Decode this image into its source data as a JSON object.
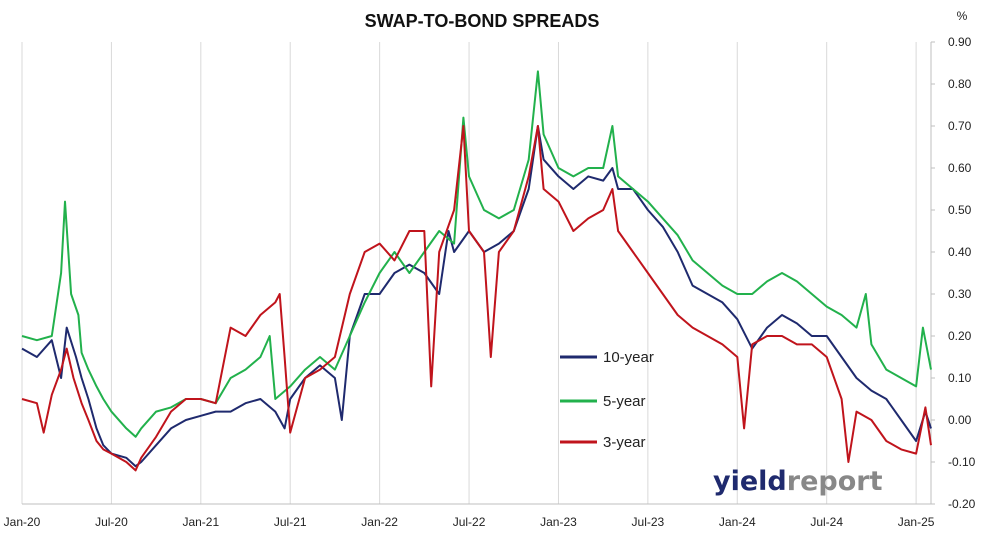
{
  "chart_data": {
    "type": "line",
    "title": "SWAP-TO-BOND SPREADS",
    "ylabel": "%",
    "ylim": [
      -0.2,
      0.9
    ],
    "yticks": [
      "0.90",
      "0.80",
      "0.70",
      "0.60",
      "0.50",
      "0.40",
      "0.30",
      "0.20",
      "0.10",
      "0.00",
      "-0.10",
      "-0.20"
    ],
    "xlim": [
      "2020-01",
      "2025-02"
    ],
    "xticks": [
      "Jan-20",
      "Jul-20",
      "Jan-21",
      "Jul-21",
      "Jan-22",
      "Jul-22",
      "Jan-23",
      "Jul-23",
      "Jan-24",
      "Jul-24",
      "Jan-25"
    ],
    "grid": "vertical",
    "legend_position": "lower-middle-right",
    "series": [
      {
        "name": "10-year",
        "color": "#1f2a6e",
        "points": [
          [
            "2020-01-01",
            0.17
          ],
          [
            "2020-02-01",
            0.15
          ],
          [
            "2020-03-01",
            0.19
          ],
          [
            "2020-03-20",
            0.1
          ],
          [
            "2020-04-01",
            0.22
          ],
          [
            "2020-04-20",
            0.15
          ],
          [
            "2020-05-01",
            0.1
          ],
          [
            "2020-05-15",
            0.05
          ],
          [
            "2020-06-01",
            -0.02
          ],
          [
            "2020-06-15",
            -0.06
          ],
          [
            "2020-07-01",
            -0.08
          ],
          [
            "2020-08-01",
            -0.09
          ],
          [
            "2020-08-20",
            -0.11
          ],
          [
            "2020-09-01",
            -0.1
          ],
          [
            "2020-10-01",
            -0.06
          ],
          [
            "2020-11-01",
            -0.02
          ],
          [
            "2020-12-01",
            0.0
          ],
          [
            "2021-01-01",
            0.01
          ],
          [
            "2021-02-01",
            0.02
          ],
          [
            "2021-03-01",
            0.02
          ],
          [
            "2021-04-01",
            0.04
          ],
          [
            "2021-05-01",
            0.05
          ],
          [
            "2021-06-01",
            0.02
          ],
          [
            "2021-06-20",
            -0.02
          ],
          [
            "2021-07-01",
            0.05
          ],
          [
            "2021-08-01",
            0.1
          ],
          [
            "2021-09-01",
            0.13
          ],
          [
            "2021-10-01",
            0.1
          ],
          [
            "2021-10-15",
            0.0
          ],
          [
            "2021-11-01",
            0.2
          ],
          [
            "2021-12-01",
            0.3
          ],
          [
            "2022-01-01",
            0.3
          ],
          [
            "2022-02-01",
            0.35
          ],
          [
            "2022-03-01",
            0.37
          ],
          [
            "2022-04-01",
            0.35
          ],
          [
            "2022-05-01",
            0.3
          ],
          [
            "2022-05-20",
            0.45
          ],
          [
            "2022-06-01",
            0.4
          ],
          [
            "2022-07-01",
            0.45
          ],
          [
            "2022-08-01",
            0.4
          ],
          [
            "2022-09-01",
            0.42
          ],
          [
            "2022-10-01",
            0.45
          ],
          [
            "2022-11-01",
            0.55
          ],
          [
            "2022-11-20",
            0.7
          ],
          [
            "2022-12-01",
            0.62
          ],
          [
            "2023-01-01",
            0.58
          ],
          [
            "2023-02-01",
            0.55
          ],
          [
            "2023-03-01",
            0.58
          ],
          [
            "2023-04-01",
            0.57
          ],
          [
            "2023-04-20",
            0.6
          ],
          [
            "2023-05-01",
            0.55
          ],
          [
            "2023-06-01",
            0.55
          ],
          [
            "2023-07-01",
            0.5
          ],
          [
            "2023-08-01",
            0.46
          ],
          [
            "2023-09-01",
            0.4
          ],
          [
            "2023-10-01",
            0.32
          ],
          [
            "2023-11-01",
            0.3
          ],
          [
            "2023-12-01",
            0.28
          ],
          [
            "2024-01-01",
            0.24
          ],
          [
            "2024-02-01",
            0.17
          ],
          [
            "2024-03-01",
            0.22
          ],
          [
            "2024-04-01",
            0.25
          ],
          [
            "2024-05-01",
            0.23
          ],
          [
            "2024-06-01",
            0.2
          ],
          [
            "2024-07-01",
            0.2
          ],
          [
            "2024-08-01",
            0.15
          ],
          [
            "2024-09-01",
            0.1
          ],
          [
            "2024-10-01",
            0.07
          ],
          [
            "2024-11-01",
            0.05
          ],
          [
            "2024-12-01",
            0.0
          ],
          [
            "2025-01-01",
            -0.05
          ],
          [
            "2025-01-20",
            0.02
          ],
          [
            "2025-02-01",
            -0.02
          ]
        ]
      },
      {
        "name": "5-year",
        "color": "#22b14c",
        "points": [
          [
            "2020-01-01",
            0.2
          ],
          [
            "2020-02-01",
            0.19
          ],
          [
            "2020-03-01",
            0.2
          ],
          [
            "2020-03-20",
            0.35
          ],
          [
            "2020-03-28",
            0.52
          ],
          [
            "2020-04-10",
            0.3
          ],
          [
            "2020-04-25",
            0.25
          ],
          [
            "2020-05-01",
            0.16
          ],
          [
            "2020-05-15",
            0.12
          ],
          [
            "2020-06-01",
            0.08
          ],
          [
            "2020-06-15",
            0.05
          ],
          [
            "2020-07-01",
            0.02
          ],
          [
            "2020-08-01",
            -0.02
          ],
          [
            "2020-08-20",
            -0.04
          ],
          [
            "2020-09-01",
            -0.02
          ],
          [
            "2020-10-01",
            0.02
          ],
          [
            "2020-11-01",
            0.03
          ],
          [
            "2020-12-01",
            0.05
          ],
          [
            "2021-01-01",
            0.05
          ],
          [
            "2021-02-01",
            0.04
          ],
          [
            "2021-03-01",
            0.1
          ],
          [
            "2021-04-01",
            0.12
          ],
          [
            "2021-05-01",
            0.15
          ],
          [
            "2021-05-20",
            0.2
          ],
          [
            "2021-06-01",
            0.05
          ],
          [
            "2021-07-01",
            0.08
          ],
          [
            "2021-08-01",
            0.12
          ],
          [
            "2021-09-01",
            0.15
          ],
          [
            "2021-10-01",
            0.12
          ],
          [
            "2021-11-01",
            0.2
          ],
          [
            "2021-12-01",
            0.28
          ],
          [
            "2022-01-01",
            0.35
          ],
          [
            "2022-02-01",
            0.4
          ],
          [
            "2022-03-01",
            0.35
          ],
          [
            "2022-04-01",
            0.4
          ],
          [
            "2022-05-01",
            0.45
          ],
          [
            "2022-06-01",
            0.42
          ],
          [
            "2022-06-20",
            0.72
          ],
          [
            "2022-07-01",
            0.58
          ],
          [
            "2022-08-01",
            0.5
          ],
          [
            "2022-09-01",
            0.48
          ],
          [
            "2022-10-01",
            0.5
          ],
          [
            "2022-11-01",
            0.62
          ],
          [
            "2022-11-20",
            0.83
          ],
          [
            "2022-12-01",
            0.68
          ],
          [
            "2023-01-01",
            0.6
          ],
          [
            "2023-02-01",
            0.58
          ],
          [
            "2023-03-01",
            0.6
          ],
          [
            "2023-04-01",
            0.6
          ],
          [
            "2023-04-20",
            0.7
          ],
          [
            "2023-05-01",
            0.58
          ],
          [
            "2023-06-01",
            0.55
          ],
          [
            "2023-07-01",
            0.52
          ],
          [
            "2023-08-01",
            0.48
          ],
          [
            "2023-09-01",
            0.44
          ],
          [
            "2023-10-01",
            0.38
          ],
          [
            "2023-11-01",
            0.35
          ],
          [
            "2023-12-01",
            0.32
          ],
          [
            "2024-01-01",
            0.3
          ],
          [
            "2024-02-01",
            0.3
          ],
          [
            "2024-03-01",
            0.33
          ],
          [
            "2024-04-01",
            0.35
          ],
          [
            "2024-05-01",
            0.33
          ],
          [
            "2024-06-01",
            0.3
          ],
          [
            "2024-07-01",
            0.27
          ],
          [
            "2024-08-01",
            0.25
          ],
          [
            "2024-09-01",
            0.22
          ],
          [
            "2024-09-20",
            0.3
          ],
          [
            "2024-10-01",
            0.18
          ],
          [
            "2024-11-01",
            0.12
          ],
          [
            "2024-12-01",
            0.1
          ],
          [
            "2025-01-01",
            0.08
          ],
          [
            "2025-01-15",
            0.22
          ],
          [
            "2025-02-01",
            0.12
          ]
        ]
      },
      {
        "name": "3-year",
        "color": "#c0141c",
        "points": [
          [
            "2020-01-01",
            0.05
          ],
          [
            "2020-02-01",
            0.04
          ],
          [
            "2020-02-15",
            -0.03
          ],
          [
            "2020-03-01",
            0.06
          ],
          [
            "2020-03-20",
            0.12
          ],
          [
            "2020-04-01",
            0.17
          ],
          [
            "2020-04-15",
            0.1
          ],
          [
            "2020-05-01",
            0.04
          ],
          [
            "2020-05-15",
            0.0
          ],
          [
            "2020-06-01",
            -0.05
          ],
          [
            "2020-06-15",
            -0.07
          ],
          [
            "2020-07-01",
            -0.08
          ],
          [
            "2020-08-01",
            -0.1
          ],
          [
            "2020-08-20",
            -0.12
          ],
          [
            "2020-09-01",
            -0.09
          ],
          [
            "2020-10-01",
            -0.04
          ],
          [
            "2020-11-01",
            0.02
          ],
          [
            "2020-12-01",
            0.05
          ],
          [
            "2021-01-01",
            0.05
          ],
          [
            "2021-02-01",
            0.04
          ],
          [
            "2021-03-01",
            0.22
          ],
          [
            "2021-04-01",
            0.2
          ],
          [
            "2021-05-01",
            0.25
          ],
          [
            "2021-06-01",
            0.28
          ],
          [
            "2021-06-10",
            0.3
          ],
          [
            "2021-06-20",
            0.15
          ],
          [
            "2021-07-01",
            -0.03
          ],
          [
            "2021-08-01",
            0.1
          ],
          [
            "2021-09-01",
            0.12
          ],
          [
            "2021-10-01",
            0.15
          ],
          [
            "2021-11-01",
            0.3
          ],
          [
            "2021-12-01",
            0.4
          ],
          [
            "2022-01-01",
            0.42
          ],
          [
            "2022-02-01",
            0.38
          ],
          [
            "2022-03-01",
            0.45
          ],
          [
            "2022-04-01",
            0.45
          ],
          [
            "2022-04-15",
            0.08
          ],
          [
            "2022-05-01",
            0.4
          ],
          [
            "2022-06-01",
            0.5
          ],
          [
            "2022-06-20",
            0.7
          ],
          [
            "2022-07-01",
            0.45
          ],
          [
            "2022-08-01",
            0.4
          ],
          [
            "2022-08-15",
            0.15
          ],
          [
            "2022-09-01",
            0.4
          ],
          [
            "2022-10-01",
            0.45
          ],
          [
            "2022-11-01",
            0.58
          ],
          [
            "2022-11-20",
            0.7
          ],
          [
            "2022-12-01",
            0.55
          ],
          [
            "2023-01-01",
            0.52
          ],
          [
            "2023-02-01",
            0.45
          ],
          [
            "2023-03-01",
            0.48
          ],
          [
            "2023-04-01",
            0.5
          ],
          [
            "2023-04-20",
            0.55
          ],
          [
            "2023-05-01",
            0.45
          ],
          [
            "2023-06-01",
            0.4
          ],
          [
            "2023-07-01",
            0.35
          ],
          [
            "2023-08-01",
            0.3
          ],
          [
            "2023-09-01",
            0.25
          ],
          [
            "2023-10-01",
            0.22
          ],
          [
            "2023-11-01",
            0.2
          ],
          [
            "2023-12-01",
            0.18
          ],
          [
            "2024-01-01",
            0.15
          ],
          [
            "2024-01-15",
            -0.02
          ],
          [
            "2024-02-01",
            0.18
          ],
          [
            "2024-03-01",
            0.2
          ],
          [
            "2024-04-01",
            0.2
          ],
          [
            "2024-05-01",
            0.18
          ],
          [
            "2024-06-01",
            0.18
          ],
          [
            "2024-07-01",
            0.15
          ],
          [
            "2024-08-01",
            0.05
          ],
          [
            "2024-08-15",
            -0.1
          ],
          [
            "2024-09-01",
            0.02
          ],
          [
            "2024-10-01",
            0.0
          ],
          [
            "2024-11-01",
            -0.05
          ],
          [
            "2024-12-01",
            -0.07
          ],
          [
            "2025-01-01",
            -0.08
          ],
          [
            "2025-01-20",
            0.03
          ],
          [
            "2025-02-01",
            -0.06
          ]
        ]
      }
    ]
  },
  "brand": {
    "part1": "yield",
    "part2": "report",
    "color1": "#1f2a6e",
    "color2": "#888888"
  }
}
